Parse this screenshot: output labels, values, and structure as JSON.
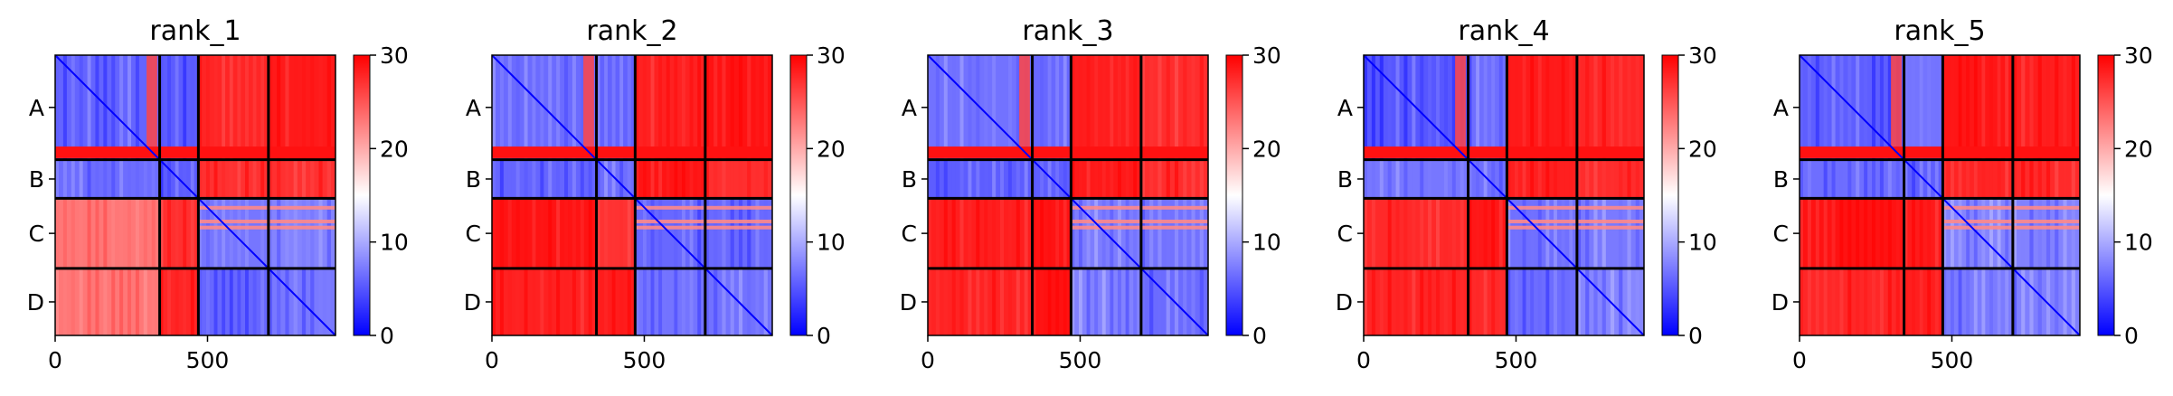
{
  "chart_data": [
    {
      "type": "heatmap",
      "title": "rank_1",
      "variant": 1,
      "chain_labels": [
        "A",
        "B",
        "C",
        "D"
      ],
      "chain_boundaries": [
        0,
        343,
        470,
        700,
        920
      ],
      "xticks": [
        0,
        500
      ],
      "xlim": [
        0,
        920
      ],
      "ylim": [
        920,
        0
      ],
      "colorbar": {
        "ticks": [
          0,
          10,
          20,
          30
        ],
        "vmin": 0,
        "vmax": 30
      },
      "colormap": [
        "#0000ff",
        "#ffffff",
        "#ff0000"
      ]
    },
    {
      "type": "heatmap",
      "title": "rank_2",
      "variant": 2,
      "chain_labels": [
        "A",
        "B",
        "C",
        "D"
      ],
      "chain_boundaries": [
        0,
        343,
        470,
        700,
        920
      ],
      "xticks": [
        0,
        500
      ],
      "xlim": [
        0,
        920
      ],
      "ylim": [
        920,
        0
      ],
      "colorbar": {
        "ticks": [
          0,
          10,
          20,
          30
        ],
        "vmin": 0,
        "vmax": 30
      },
      "colormap": [
        "#0000ff",
        "#ffffff",
        "#ff0000"
      ]
    },
    {
      "type": "heatmap",
      "title": "rank_3",
      "variant": 3,
      "chain_labels": [
        "A",
        "B",
        "C",
        "D"
      ],
      "chain_boundaries": [
        0,
        343,
        470,
        700,
        920
      ],
      "xticks": [
        0,
        500
      ],
      "xlim": [
        0,
        920
      ],
      "ylim": [
        920,
        0
      ],
      "colorbar": {
        "ticks": [
          0,
          10,
          20,
          30
        ],
        "vmin": 0,
        "vmax": 30
      },
      "colormap": [
        "#0000ff",
        "#ffffff",
        "#ff0000"
      ]
    },
    {
      "type": "heatmap",
      "title": "rank_4",
      "variant": 4,
      "chain_labels": [
        "A",
        "B",
        "C",
        "D"
      ],
      "chain_boundaries": [
        0,
        343,
        470,
        700,
        920
      ],
      "xticks": [
        0,
        500
      ],
      "xlim": [
        0,
        920
      ],
      "ylim": [
        920,
        0
      ],
      "colorbar": {
        "ticks": [
          0,
          10,
          20,
          30
        ],
        "vmin": 0,
        "vmax": 30
      },
      "colormap": [
        "#0000ff",
        "#ffffff",
        "#ff0000"
      ]
    },
    {
      "type": "heatmap",
      "title": "rank_5",
      "variant": 5,
      "chain_labels": [
        "A",
        "B",
        "C",
        "D"
      ],
      "chain_boundaries": [
        0,
        343,
        470,
        700,
        920
      ],
      "xticks": [
        0,
        500
      ],
      "xlim": [
        0,
        920
      ],
      "ylim": [
        920,
        0
      ],
      "colorbar": {
        "ticks": [
          0,
          10,
          20,
          30
        ],
        "vmin": 0,
        "vmax": 30
      },
      "colormap": [
        "#0000ff",
        "#ffffff",
        "#ff0000"
      ]
    }
  ]
}
